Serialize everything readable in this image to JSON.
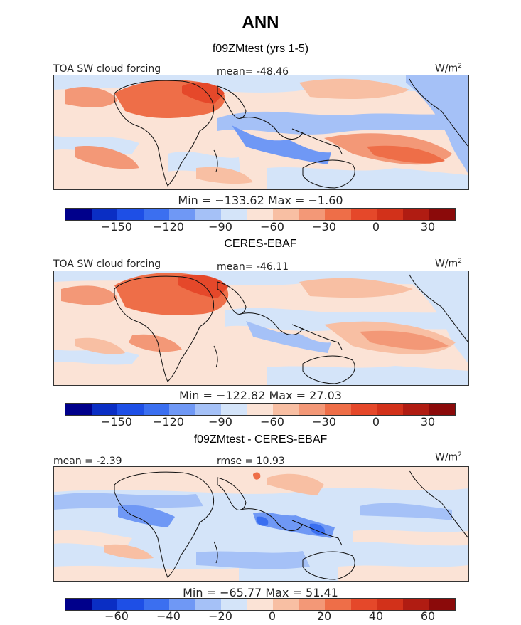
{
  "title": "ANN",
  "panels": [
    {
      "heading": "f09ZMtest (yrs 1-5)",
      "left_label": "TOA SW cloud forcing",
      "center_label": "mean= -48.46",
      "units": "W/m",
      "units_exp": "2",
      "minmax": "Min = −133.62 Max =  −1.60",
      "tick_labels": [
        "−150",
        "−120",
        "−90",
        "−60",
        "−30",
        "0",
        "30"
      ]
    },
    {
      "heading": "CERES-EBAF",
      "left_label": "TOA SW cloud forcing",
      "center_label": "mean= -46.11",
      "units": "W/m",
      "units_exp": "2",
      "minmax": "Min = −122.82 Max =  27.03",
      "tick_labels": [
        "−150",
        "−120",
        "−90",
        "−60",
        "−30",
        "0",
        "30"
      ]
    },
    {
      "heading": "f09ZMtest - CERES-EBAF",
      "left_label": "mean =  -2.39",
      "center_label": "rmse =  10.93",
      "units": "W/m",
      "units_exp": "2",
      "minmax": "Min = −65.77 Max =  51.41",
      "tick_labels": [
        "−60",
        "−40",
        "−20",
        "0",
        "20",
        "40",
        "60"
      ]
    }
  ],
  "colorbar_colors": [
    "#00008b",
    "#0a2ec4",
    "#1e4fe6",
    "#3b6ff0",
    "#6f98f5",
    "#a5c1f7",
    "#d4e4f9",
    "#fbe3d6",
    "#f8bfa3",
    "#f39877",
    "#ee6e48",
    "#e5482a",
    "#d2311a",
    "#b01c12",
    "#8b0a0a"
  ],
  "chart_data": {
    "type": "heatmap",
    "title": "ANN",
    "variable": "TOA SW cloud forcing",
    "units": "W/m2",
    "maps": [
      {
        "name": "f09ZMtest (yrs 1-5)",
        "mean": -48.46,
        "min": -133.62,
        "max": -1.6,
        "colorbar_ticks": [
          -150,
          -120,
          -90,
          -60,
          -30,
          0,
          30
        ]
      },
      {
        "name": "CERES-EBAF",
        "mean": -46.11,
        "min": -122.82,
        "max": 27.03,
        "colorbar_ticks": [
          -150,
          -120,
          -90,
          -60,
          -30,
          0,
          30
        ]
      },
      {
        "name": "f09ZMtest - CERES-EBAF",
        "mean": -2.39,
        "rmse": 10.93,
        "min": -65.77,
        "max": 51.41,
        "colorbar_ticks": [
          -60,
          -40,
          -20,
          0,
          20,
          40,
          60
        ]
      }
    ]
  }
}
